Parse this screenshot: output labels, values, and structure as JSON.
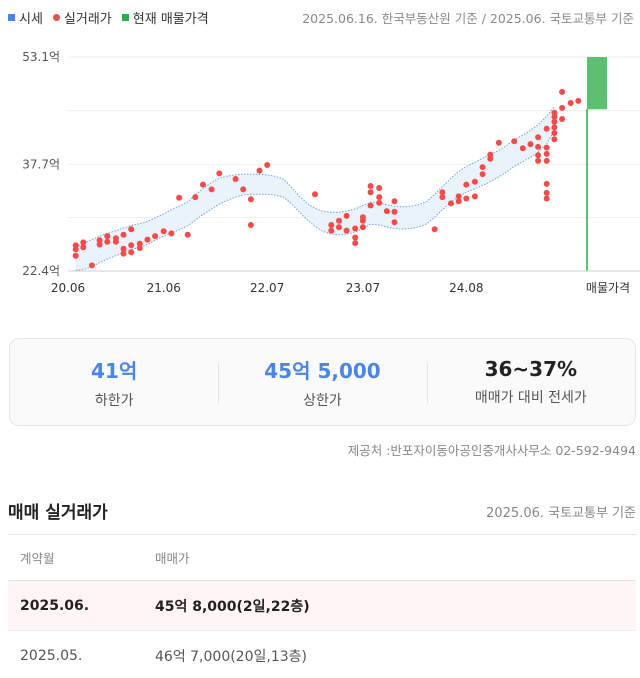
{
  "legend": [
    {
      "label": "시세",
      "color": "#4a86e8",
      "shape": "square"
    },
    {
      "label": "실거래가",
      "color": "#f24b4b",
      "shape": "dot"
    },
    {
      "label": "현재 매물가격",
      "color": "#27ae48",
      "shape": "square"
    }
  ],
  "source_top": "2025.06.16. 한국부동산원 기준 / 2025.06. 국토교통부 기준",
  "chart_data": {
    "type": "scatter",
    "y_unit": "억",
    "ylim": [
      22.4,
      53.1
    ],
    "y_ticks": [
      "53.1억",
      "37.7억",
      "22.4억"
    ],
    "x_ticks": [
      "20.06",
      "21.06",
      "22.07",
      "23.07",
      "24.08",
      "매물가격"
    ],
    "grid": true,
    "price_band": {
      "name": "시세",
      "color": "#4a86e8",
      "x": [
        2020.5,
        2020.58,
        2020.67,
        2020.75,
        2020.83,
        2020.92,
        2021.0,
        2021.08,
        2021.17,
        2021.25,
        2021.33,
        2021.42,
        2021.5,
        2021.58,
        2021.67,
        2021.75,
        2021.83,
        2021.92,
        2022.0,
        2022.08,
        2022.17,
        2022.25,
        2022.33,
        2022.42,
        2022.5,
        2022.58,
        2022.67,
        2022.75,
        2022.83,
        2022.92,
        2023.0,
        2023.08,
        2023.17,
        2023.25,
        2023.33,
        2023.42,
        2023.5,
        2023.58,
        2023.67,
        2023.75,
        2023.83,
        2023.92,
        2024.0,
        2024.08,
        2024.17,
        2024.25,
        2024.33,
        2024.42,
        2024.5,
        2024.58,
        2024.67,
        2024.75,
        2024.83,
        2024.92,
        2025.0,
        2025.08,
        2025.17,
        2025.25,
        2025.33,
        2025.42,
        2025.5
      ],
      "low": [
        22.5,
        22.6,
        23.0,
        23.6,
        24.1,
        24.6,
        25.1,
        25.5,
        25.8,
        26.2,
        26.8,
        27.4,
        27.9,
        28.3,
        28.9,
        29.7,
        30.5,
        31.3,
        32.0,
        32.5,
        33.0,
        33.3,
        33.4,
        33.4,
        33.4,
        33.3,
        33.0,
        32.1,
        30.9,
        29.7,
        28.8,
        28.1,
        27.7,
        27.6,
        27.7,
        28.0,
        28.5,
        29.1,
        29.0,
        28.7,
        28.5,
        28.4,
        28.5,
        28.7,
        29.2,
        30.1,
        31.2,
        32.3,
        33.1,
        33.7,
        34.2,
        34.7,
        35.2,
        35.9,
        36.6,
        37.4,
        38.1,
        38.7,
        39.4,
        40.6,
        42.6
      ],
      "high": [
        25.8,
        26.4,
        26.9,
        27.4,
        27.8,
        28.2,
        28.6,
        28.9,
        29.2,
        29.5,
        30.0,
        30.6,
        31.2,
        31.7,
        32.3,
        33.3,
        34.2,
        35.1,
        35.7,
        36.0,
        36.2,
        36.3,
        36.3,
        36.3,
        36.2,
        36.0,
        35.6,
        34.5,
        33.2,
        32.1,
        31.4,
        31.0,
        30.8,
        30.8,
        31.0,
        31.3,
        31.8,
        32.3,
        32.2,
        31.9,
        31.7,
        31.6,
        31.7,
        31.9,
        32.4,
        33.4,
        34.5,
        35.7,
        36.7,
        37.4,
        38.0,
        38.6,
        39.1,
        39.7,
        40.4,
        41.2,
        41.9,
        42.6,
        43.4,
        44.6,
        46.0
      ]
    },
    "transactions": {
      "name": "실거래가",
      "color": "#f24b4b",
      "x": [
        2020.5,
        2020.5,
        2020.5,
        2020.58,
        2020.58,
        2020.67,
        2020.75,
        2020.75,
        2020.83,
        2020.83,
        2020.92,
        2020.92,
        2021.0,
        2021.0,
        2021.0,
        2021.08,
        2021.08,
        2021.08,
        2021.17,
        2021.17,
        2021.25,
        2021.33,
        2021.42,
        2021.5,
        2021.58,
        2021.67,
        2021.75,
        2021.83,
        2021.92,
        2022.0,
        2022.17,
        2022.25,
        2022.33,
        2022.33,
        2022.42,
        2022.5,
        2023.0,
        2023.17,
        2023.17,
        2023.25,
        2023.25,
        2023.33,
        2023.33,
        2023.42,
        2023.42,
        2023.42,
        2023.5,
        2023.5,
        2023.5,
        2023.58,
        2023.58,
        2023.58,
        2023.67,
        2023.67,
        2023.67,
        2023.75,
        2023.83,
        2023.83,
        2023.83,
        2024.25,
        2024.33,
        2024.33,
        2024.42,
        2024.5,
        2024.5,
        2024.58,
        2024.58,
        2024.67,
        2024.67,
        2024.75,
        2024.75,
        2024.83,
        2024.83,
        2024.92,
        2025.08,
        2025.17,
        2025.25,
        2025.33,
        2025.33,
        2025.33,
        2025.33,
        2025.42,
        2025.42,
        2025.42,
        2025.42,
        2025.42,
        2025.42,
        2025.42,
        2025.5,
        2025.5,
        2025.5,
        2025.5,
        2025.5,
        2025.5,
        2025.58,
        2025.58,
        2025.58,
        2025.67,
        2025.75
      ],
      "y": [
        24.6,
        25.5,
        26.1,
        25.8,
        26.5,
        23.2,
        26.2,
        26.8,
        26.6,
        27.4,
        26.6,
        27.1,
        24.9,
        25.6,
        27.6,
        25.1,
        26.1,
        28.4,
        25.7,
        26.3,
        26.9,
        27.4,
        28.1,
        27.8,
        32.9,
        27.6,
        33.0,
        34.8,
        34.1,
        36.4,
        35.6,
        34.1,
        29.0,
        32.7,
        36.8,
        37.6,
        33.4,
        28.2,
        29.0,
        28.7,
        29.6,
        28.2,
        30.3,
        26.4,
        27.2,
        28.5,
        28.7,
        29.6,
        30.1,
        31.8,
        33.7,
        34.6,
        32.2,
        33.0,
        34.3,
        31.0,
        29.4,
        30.9,
        32.4,
        28.4,
        33.0,
        33.7,
        32.1,
        32.4,
        33.1,
        32.8,
        34.8,
        33.1,
        35.2,
        36.3,
        37.3,
        38.5,
        39.1,
        40.8,
        41.0,
        40.0,
        40.6,
        38.2,
        39.0,
        40.2,
        41.6,
        32.8,
        33.6,
        34.9,
        38.2,
        39.2,
        40.1,
        42.8,
        41.3,
        42.2,
        43.0,
        43.8,
        44.5,
        45.1,
        44.2,
        45.8,
        48.1,
        46.5,
        46.8
      ]
    },
    "listing_range": {
      "name": "현재 매물가격",
      "color": "#27ae48",
      "low": 45.6,
      "high": 53.1
    }
  },
  "stats": [
    {
      "value": "41억",
      "label": "하한가",
      "tone": "blue"
    },
    {
      "value": "45억 5,000",
      "label": "상한가",
      "tone": "blue"
    },
    {
      "value": "36~37%",
      "label": "매매가 대비 전세가",
      "tone": "dark"
    }
  ],
  "provider": "제공처 :반포자이동아공인중개사사무소 02-592-9494",
  "deals": {
    "title": "매매 실거래가",
    "source": "2025.06. 국토교통부 기준",
    "columns": [
      "계약월",
      "매매가"
    ],
    "rows": [
      {
        "month": "2025.06.",
        "price": "45억 8,000(2일,22층)"
      },
      {
        "month": "2025.05.",
        "price": "46억 7,000(20일,13층)"
      }
    ]
  }
}
